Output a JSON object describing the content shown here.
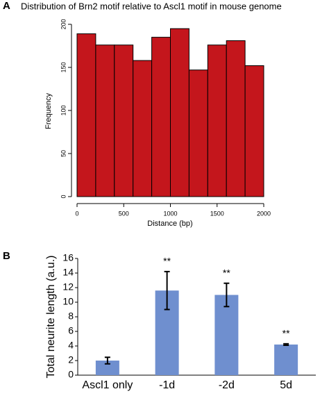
{
  "chart_data": [
    {
      "type": "histogram",
      "panel": "A",
      "title": "Distribution of Brn2 motif relative to Ascl1 motif in mouse genome",
      "xlabel": "Distance (bp)",
      "ylabel": "Frequency",
      "bins": [
        0,
        200,
        400,
        600,
        800,
        1000,
        1200,
        1400,
        1600,
        1800,
        2000
      ],
      "values": [
        189,
        176,
        176,
        158,
        185,
        195,
        147,
        176,
        181,
        152
      ],
      "color": "#c4161c",
      "xlim": [
        0,
        2000
      ],
      "xticks": [
        0,
        500,
        1000,
        1500,
        2000
      ],
      "ylim": [
        0,
        200
      ],
      "yticks": [
        0,
        50,
        100,
        150,
        200
      ]
    },
    {
      "type": "bar",
      "panel": "B",
      "ylabel": "Total neurite length (a.u.)",
      "categories": [
        "Ascl1 only",
        "-1d",
        "-2d",
        "5d"
      ],
      "values": [
        2.0,
        11.6,
        11.0,
        4.2
      ],
      "errors": [
        0.45,
        2.6,
        1.6,
        0.1
      ],
      "annotations": [
        null,
        "**",
        "**",
        "**"
      ],
      "color": "#6f8fcf",
      "ylim": [
        0,
        16
      ],
      "yticks": [
        0,
        2,
        4,
        6,
        8,
        10,
        12,
        14,
        16
      ]
    }
  ]
}
